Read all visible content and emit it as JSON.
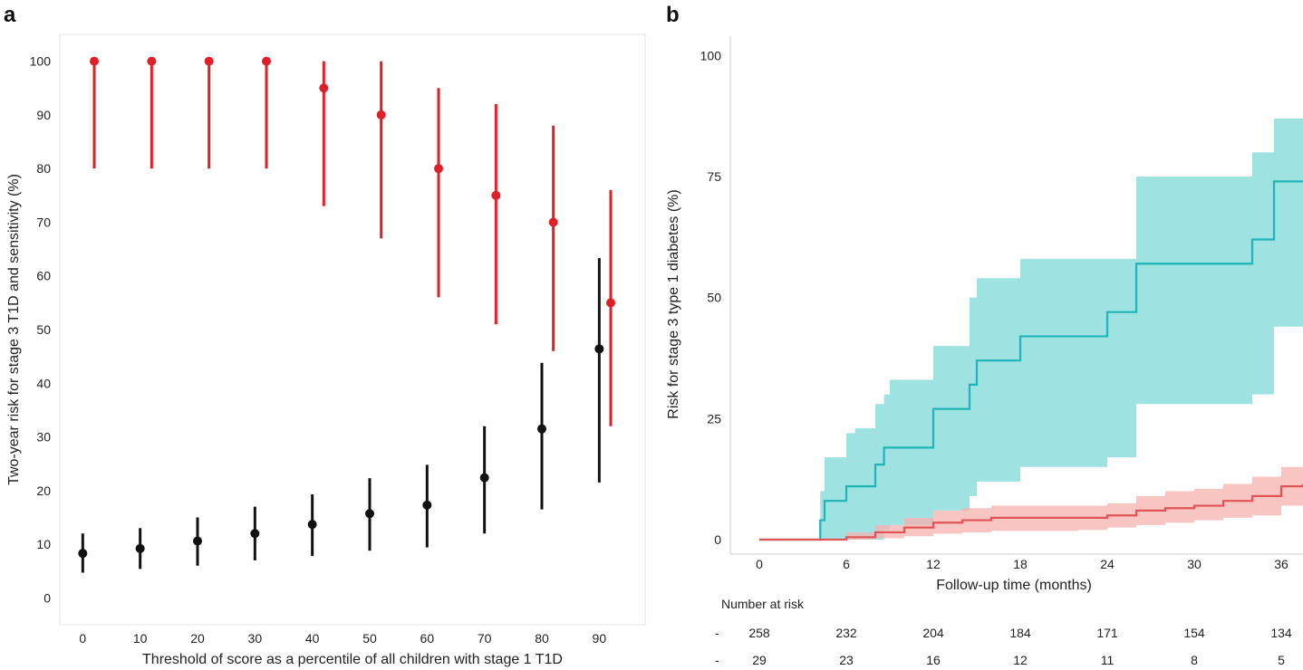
{
  "chart_data": [
    {
      "panel": "a",
      "type": "scatter",
      "ylabel": "Two-year risk for stage 3 T1D and sensitivity (%)",
      "xlabel": "Threshold of score as a percentile of all children with stage 1 T1D",
      "x_ticks": [
        "0",
        "10",
        "20",
        "30",
        "40",
        "50",
        "60",
        "70",
        "80",
        "90"
      ],
      "y_ticks": [
        "0",
        "10",
        "20",
        "30",
        "40",
        "50",
        "60",
        "70",
        "80",
        "90",
        "100"
      ],
      "xlim": [
        -4,
        98
      ],
      "ylim": [
        -5,
        105
      ],
      "series": [
        {
          "color": "#e01f26",
          "x": [
            2,
            12,
            22,
            32,
            42,
            52,
            62,
            72,
            82,
            92
          ],
          "y": [
            100,
            100,
            100,
            100,
            95,
            90,
            80,
            75,
            70,
            55
          ],
          "lower": [
            80,
            80,
            80,
            80,
            73,
            67,
            56,
            51,
            46,
            32
          ],
          "upper": [
            100,
            100,
            100,
            100,
            100,
            100,
            95,
            92,
            88,
            76
          ]
        },
        {
          "color": "#111111",
          "x": [
            0,
            10,
            20,
            30,
            40,
            50,
            60,
            70,
            80,
            90
          ],
          "y": [
            8.3,
            9.2,
            10.6,
            12.0,
            13.7,
            15.7,
            17.3,
            22.4,
            31.5,
            46.4
          ],
          "lower": [
            4.7,
            5.4,
            6.0,
            7.0,
            7.8,
            8.8,
            9.4,
            12.0,
            16.5,
            21.5
          ],
          "upper": [
            12.0,
            13.0,
            15.0,
            17.0,
            19.3,
            22.3,
            24.8,
            32.0,
            43.8,
            63.3
          ]
        }
      ]
    },
    {
      "panel": "b",
      "type": "line",
      "ylabel": "Risk for stage 3 type 1 diabetes (%)",
      "xlabel": "Follow-up time (months)",
      "x_ticks": [
        "0",
        "6",
        "12",
        "18",
        "24",
        "30",
        "36"
      ],
      "y_ticks": [
        "0",
        "25",
        "50",
        "75",
        "100"
      ],
      "xlim": [
        -2,
        37.5
      ],
      "ylim": [
        -3,
        104
      ],
      "number_at_risk_label": "Number at risk",
      "number_at_risk": [
        [
          "258",
          "232",
          "204",
          "184",
          "171",
          "154",
          "134"
        ],
        [
          "29",
          "23",
          "16",
          "12",
          "11",
          "8",
          "5"
        ]
      ],
      "series": [
        {
          "color": "#1fb5b8",
          "ci_color": "#7fd8d8",
          "x": [
            0,
            4,
            4.2,
            4.5,
            6,
            6.6,
            8,
            8.6,
            9,
            12,
            14.5,
            15,
            18,
            24,
            26,
            34,
            35.5,
            37.5
          ],
          "y": [
            0,
            0,
            4,
            8,
            11,
            11,
            15.5,
            19,
            19,
            27,
            32,
            37,
            42,
            47,
            57,
            62,
            74,
            74
          ],
          "lower": [
            0,
            0,
            0,
            0,
            0,
            0,
            0,
            2,
            3,
            6,
            9,
            12,
            15,
            17,
            28,
            30,
            44,
            45
          ],
          "upper": [
            0,
            0,
            10,
            17,
            22,
            23,
            28,
            30,
            33,
            40,
            50,
            54,
            58,
            58,
            75,
            80,
            87,
            87
          ]
        },
        {
          "color": "#e15354",
          "ci_color": "#f7b2ae",
          "x": [
            0,
            4,
            6,
            8,
            10,
            12,
            14,
            16,
            18,
            20,
            22,
            24,
            26,
            28,
            30,
            32,
            34,
            36,
            37.5
          ],
          "y": [
            0,
            0,
            0.5,
            1.5,
            2.5,
            3.5,
            4,
            4.5,
            4.5,
            4.5,
            4.5,
            5,
            6,
            6.5,
            7,
            8,
            9,
            11,
            11.5
          ],
          "lower": [
            0,
            0,
            0,
            0.3,
            0.7,
            1.2,
            1.5,
            1.8,
            1.8,
            1.8,
            2,
            2.5,
            3,
            3.5,
            4,
            4.5,
            5,
            7,
            7
          ],
          "upper": [
            0,
            0,
            1.5,
            3,
            4.5,
            6,
            6.5,
            7,
            7,
            7,
            7,
            7.5,
            9,
            10,
            10.5,
            11.5,
            13,
            15,
            16
          ]
        }
      ]
    }
  ],
  "panels": {
    "a_letter": "a",
    "b_letter": "b"
  }
}
